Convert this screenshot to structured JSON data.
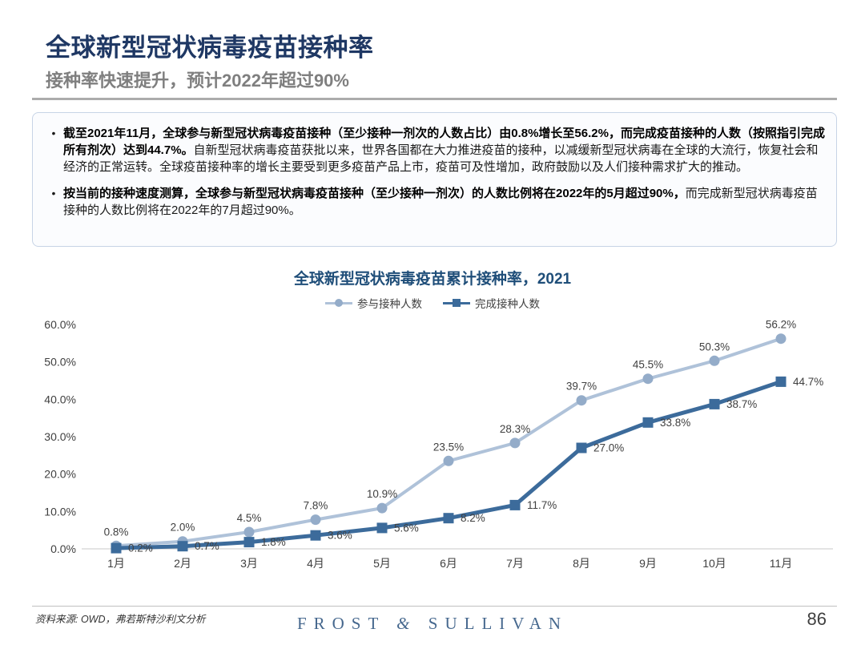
{
  "header": {
    "title": "全球新型冠状病毒疫苗接种率",
    "subtitle": "接种率快速提升，预计2022年超过90%"
  },
  "summary": {
    "bullet_marker": "•",
    "bullets": [
      {
        "bold": "截至2021年11月，全球参与新型冠状病毒疫苗接种（至少接种一剂次的人数占比）由0.8%增长至56.2%，而完成疫苗接种的人数（按照指引完成所有剂次）达到44.7%。",
        "regular": "自新型冠状病毒疫苗获批以来，世界各国都在大力推进疫苗的接种，以减缓新型冠状病毒在全球的大流行，恢复社会和经济的正常运转。全球疫苗接种率的增长主要受到更多疫苗产品上市，疫苗可及性增加，政府鼓励以及人们接种需求扩大的推动。"
      },
      {
        "bold": "按当前的接种速度测算，全球参与新型冠状病毒疫苗接种（至少接种一剂次）的人数比例将在2022年的5月超过90%，",
        "regular": "而完成新型冠状病毒疫苗接种的人数比例将在2022年的7月超过90%。"
      }
    ]
  },
  "chart_data": {
    "type": "line",
    "title": "全球新型冠状病毒疫苗累计接种率，2021",
    "categories": [
      "1月",
      "2月",
      "3月",
      "4月",
      "5月",
      "6月",
      "7月",
      "8月",
      "9月",
      "10月",
      "11月"
    ],
    "series": [
      {
        "name": "参与接种人数",
        "values": [
          0.8,
          2.0,
          4.5,
          7.8,
          10.9,
          23.5,
          28.3,
          39.7,
          45.5,
          50.3,
          56.2
        ],
        "labels": [
          "0.8%",
          "2.0%",
          "4.5%",
          "7.8%",
          "10.9%",
          "23.5%",
          "28.3%",
          "39.7%",
          "45.5%",
          "50.3%",
          "56.2%"
        ],
        "color": "#AFC2D9",
        "marker_color": "#94ACC9",
        "marker": "circle",
        "label_pos": "above"
      },
      {
        "name": "完成接种人数",
        "values": [
          0.2,
          0.7,
          1.8,
          3.6,
          5.6,
          8.2,
          11.7,
          27.0,
          33.8,
          38.7,
          44.7
        ],
        "labels": [
          "0.2%",
          "0.7%",
          "1.8%",
          "3.6%",
          "5.6%",
          "8.2%",
          "11.7%",
          "27.0%",
          "33.8%",
          "38.7%",
          "44.7%"
        ],
        "color": "#3C6B9B",
        "marker_color": "#3C6B9B",
        "marker": "square",
        "label_pos": "right"
      }
    ],
    "yticks": {
      "labels": [
        "0.0%",
        "10.0%",
        "20.0%",
        "30.0%",
        "40.0%",
        "50.0%",
        "60.0%"
      ],
      "values": [
        0,
        10,
        20,
        30,
        40,
        50,
        60
      ]
    },
    "ylim": [
      0,
      60
    ],
    "grid": false,
    "legend_position": "top",
    "axis_color": "#C9C9C9",
    "label_color": "#404040"
  },
  "footer": {
    "source": "资料来源: OWD，弗若斯特沙利文分析",
    "logo": {
      "left": "FROST",
      "amp": "&",
      "right": "SULLIVAN"
    },
    "page_number": "86"
  }
}
